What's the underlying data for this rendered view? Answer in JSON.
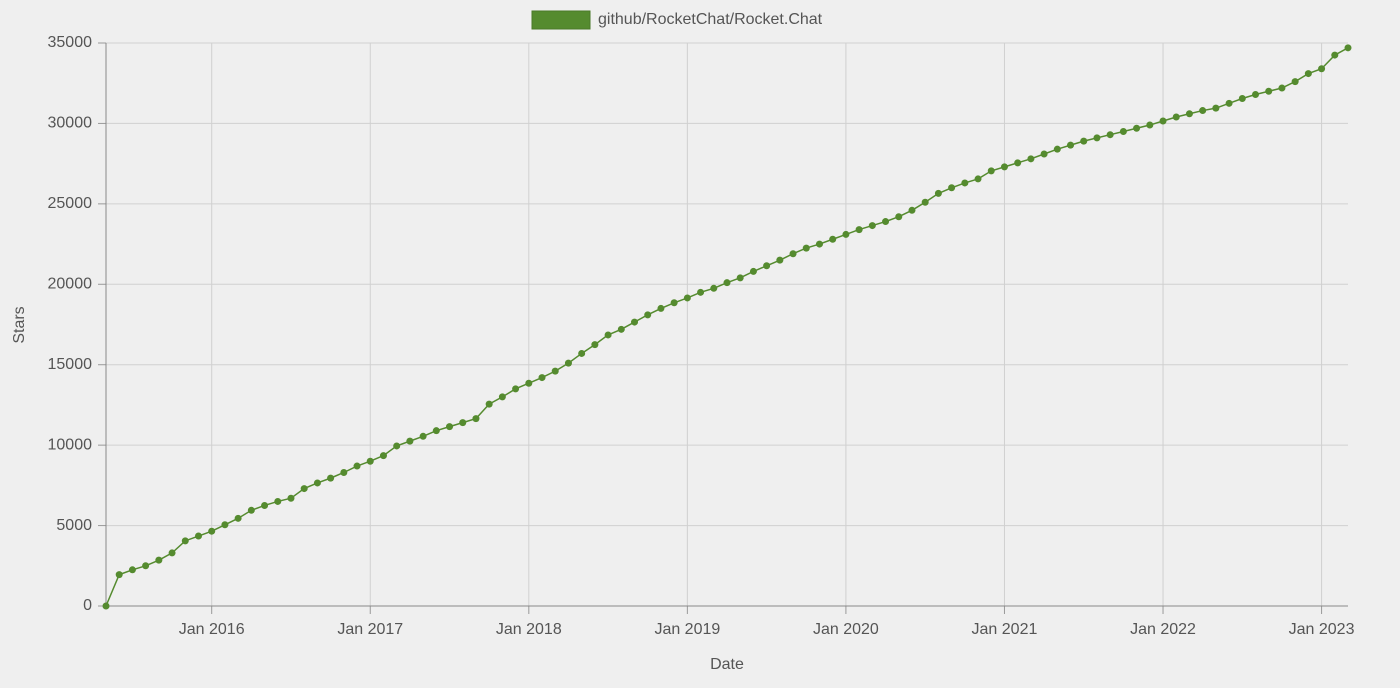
{
  "chart_data": {
    "type": "line",
    "x_label": "Date",
    "y_label": "Stars",
    "x": [
      "2015-05",
      "2015-06",
      "2015-07",
      "2015-08",
      "2015-09",
      "2015-10",
      "2015-11",
      "2015-12",
      "2016-01",
      "2016-02",
      "2016-03",
      "2016-04",
      "2016-05",
      "2016-06",
      "2016-07",
      "2016-08",
      "2016-09",
      "2016-10",
      "2016-11",
      "2016-12",
      "2017-01",
      "2017-02",
      "2017-03",
      "2017-04",
      "2017-05",
      "2017-06",
      "2017-07",
      "2017-08",
      "2017-09",
      "2017-10",
      "2017-11",
      "2017-12",
      "2018-01",
      "2018-02",
      "2018-03",
      "2018-04",
      "2018-05",
      "2018-06",
      "2018-07",
      "2018-08",
      "2018-09",
      "2018-10",
      "2018-11",
      "2018-12",
      "2019-01",
      "2019-02",
      "2019-03",
      "2019-04",
      "2019-05",
      "2019-06",
      "2019-07",
      "2019-08",
      "2019-09",
      "2019-10",
      "2019-11",
      "2019-12",
      "2020-01",
      "2020-02",
      "2020-03",
      "2020-04",
      "2020-05",
      "2020-06",
      "2020-07",
      "2020-08",
      "2020-09",
      "2020-10",
      "2020-11",
      "2020-12",
      "2021-01",
      "2021-02",
      "2021-03",
      "2021-04",
      "2021-05",
      "2021-06",
      "2021-07",
      "2021-08",
      "2021-09",
      "2021-10",
      "2021-11",
      "2021-12",
      "2022-01",
      "2022-02",
      "2022-03",
      "2022-04",
      "2022-05",
      "2022-06",
      "2022-07",
      "2022-08",
      "2022-09",
      "2022-10",
      "2022-11",
      "2022-12",
      "2023-01",
      "2023-02",
      "2023-03"
    ],
    "series": [
      {
        "name": "github/RocketChat/Rocket.Chat",
        "color": "#558b2f",
        "values": [
          0,
          1950,
          2250,
          2500,
          2850,
          3300,
          4050,
          4350,
          4650,
          5050,
          5450,
          5950,
          6250,
          6500,
          6700,
          7300,
          7650,
          7950,
          8300,
          8700,
          9000,
          9350,
          9950,
          10250,
          10550,
          10900,
          11150,
          11400,
          11650,
          12550,
          13000,
          13500,
          13850,
          14200,
          14600,
          15100,
          15700,
          16250,
          16850,
          17200,
          17650,
          18100,
          18500,
          18850,
          19150,
          19500,
          19750,
          20100,
          20400,
          20800,
          21150,
          21500,
          21900,
          22250,
          22500,
          22800,
          23100,
          23400,
          23650,
          23900,
          24200,
          24600,
          25100,
          25650,
          26000,
          26300,
          26550,
          27050,
          27300,
          27550,
          27800,
          28100,
          28400,
          28650,
          28900,
          29100,
          29300,
          29500,
          29700,
          29900,
          30150,
          30400,
          30600,
          30800,
          30950,
          31250,
          31550,
          31800,
          32000,
          32200,
          32600,
          33100,
          33400,
          34250,
          34700
        ]
      }
    ],
    "xlim": [
      "2015-05",
      "2023-03"
    ],
    "xticks": [
      {
        "value": "2016-01",
        "label": "Jan 2016"
      },
      {
        "value": "2017-01",
        "label": "Jan 2017"
      },
      {
        "value": "2018-01",
        "label": "Jan 2018"
      },
      {
        "value": "2019-01",
        "label": "Jan 2019"
      },
      {
        "value": "2020-01",
        "label": "Jan 2020"
      },
      {
        "value": "2021-01",
        "label": "Jan 2021"
      },
      {
        "value": "2022-01",
        "label": "Jan 2022"
      },
      {
        "value": "2023-01",
        "label": "Jan 2023"
      }
    ],
    "ylim": [
      0,
      35000
    ],
    "yticks": [
      0,
      5000,
      10000,
      15000,
      20000,
      25000,
      30000,
      35000
    ],
    "grid": true,
    "legend": "top"
  }
}
